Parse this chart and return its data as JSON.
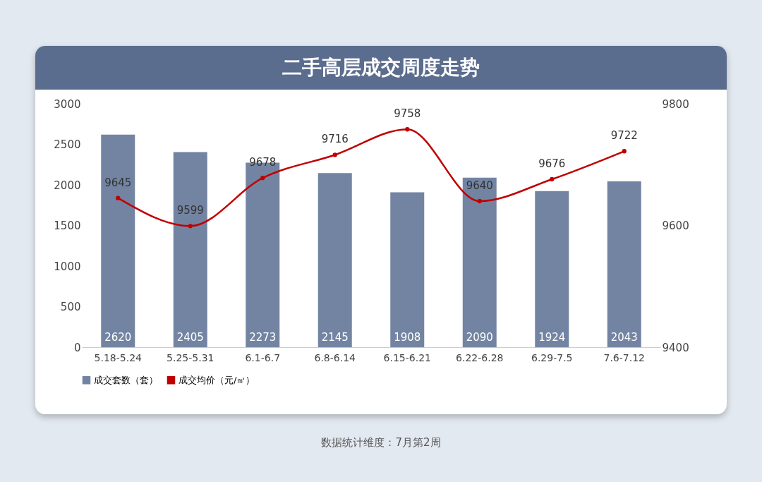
{
  "chart_data": {
    "type": "bar",
    "title": "二手高层成交周度走势",
    "categories": [
      "5.18-5.24",
      "5.25-5.31",
      "6.1-6.7",
      "6.8-6.14",
      "6.15-6.21",
      "6.22-6.28",
      "6.29-7.5",
      "7.6-7.12"
    ],
    "series": [
      {
        "name": "成交套数（套）",
        "color": "#7384a3",
        "values": [
          2620,
          2405,
          2273,
          2145,
          1908,
          2090,
          1924,
          2043
        ]
      },
      {
        "name": "成交均价（元/㎡）",
        "type": "line",
        "axis": "y2",
        "color": "#c00000",
        "values": [
          9645,
          9599,
          9678,
          9716,
          9758,
          9640,
          9676,
          9722
        ]
      }
    ],
    "ylim": [
      0,
      3000
    ],
    "yticks": [
      0,
      500,
      1000,
      1500,
      2000,
      2500,
      3000
    ],
    "y2lim": [
      9400,
      9800
    ],
    "y2ticks": [
      9400,
      9600,
      9800
    ],
    "data_labels": true,
    "grid": false,
    "legend": "bottom",
    "marker": "circle",
    "line_style": "solid",
    "annotations": [
      "数据统计维度：7月第2周"
    ]
  }
}
